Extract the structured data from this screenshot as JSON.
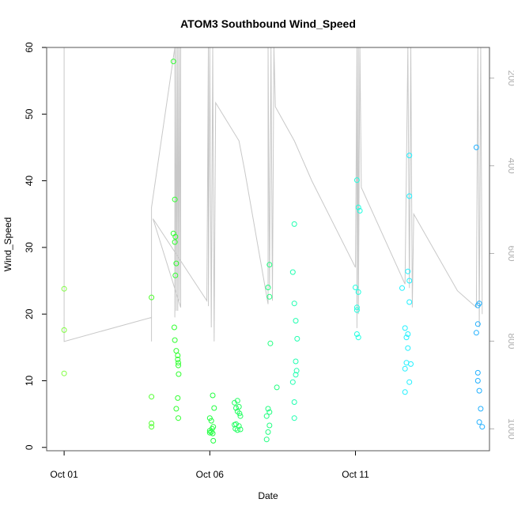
{
  "chart_data": {
    "type": "scatter",
    "title": "ATOM3 Southbound Wind_Speed",
    "xlabel": "Date",
    "ylabel": "Wind_Speed",
    "xlim": [
      -0.6,
      14.6
    ],
    "ylim": [
      -0.5,
      60
    ],
    "x_ticks": [
      {
        "value": 0,
        "label": "Oct 01"
      },
      {
        "value": 5,
        "label": "Oct 06"
      },
      {
        "value": 10,
        "label": "Oct 11"
      }
    ],
    "y_ticks": [
      0,
      10,
      20,
      30,
      40,
      50,
      60
    ],
    "y2_ticks": [
      200,
      400,
      600,
      800,
      1000
    ],
    "y2lim": [
      1050,
      130
    ],
    "grid": false,
    "legend": "none",
    "colors": {
      "frame": "#555555",
      "overlay_line": "#c8c8c8",
      "right_axis": "#b0b0b0"
    },
    "series": [
      {
        "color": "#80ff40",
        "points": [
          [
            0.0,
            23.8
          ],
          [
            0.0,
            17.6
          ],
          [
            0.0,
            11.1
          ]
        ]
      },
      {
        "color": "#50ff30",
        "points": [
          [
            3.0,
            22.5
          ],
          [
            3.0,
            7.6
          ],
          [
            3.0,
            3.6
          ],
          [
            3.0,
            3.1
          ]
        ]
      },
      {
        "color": "#30ff30",
        "points": [
          [
            3.75,
            57.9
          ],
          [
            3.8,
            37.2
          ],
          [
            3.75,
            32.1
          ],
          [
            3.82,
            31.6
          ],
          [
            3.8,
            30.8
          ],
          [
            3.85,
            27.6
          ],
          [
            3.82,
            25.8
          ],
          [
            3.78,
            18.0
          ],
          [
            3.8,
            16.1
          ],
          [
            3.85,
            14.5
          ],
          [
            3.9,
            13.8
          ],
          [
            3.9,
            13.2
          ],
          [
            3.92,
            12.7
          ],
          [
            3.92,
            12.3
          ],
          [
            3.93,
            11.0
          ],
          [
            3.9,
            7.4
          ],
          [
            3.85,
            5.8
          ],
          [
            3.92,
            4.4
          ]
        ]
      },
      {
        "color": "#20ff40",
        "points": [
          [
            5.1,
            7.8
          ],
          [
            5.15,
            5.9
          ],
          [
            5.0,
            4.4
          ],
          [
            5.05,
            4.0
          ],
          [
            5.12,
            3.1
          ],
          [
            5.08,
            2.8
          ],
          [
            5.0,
            2.5
          ],
          [
            5.05,
            2.3
          ],
          [
            5.1,
            2.1
          ],
          [
            5.0,
            2.2
          ],
          [
            5.12,
            1.0
          ]
        ]
      },
      {
        "color": "#20ff60",
        "points": [
          [
            5.85,
            6.7
          ],
          [
            5.95,
            7.0
          ],
          [
            6.0,
            6.1
          ],
          [
            5.9,
            5.9
          ],
          [
            6.02,
            5.1
          ],
          [
            5.95,
            5.4
          ],
          [
            6.05,
            4.7
          ],
          [
            5.85,
            3.4
          ],
          [
            5.9,
            3.5
          ],
          [
            6.0,
            3.2
          ],
          [
            5.88,
            2.8
          ],
          [
            5.95,
            2.6
          ],
          [
            6.05,
            2.7
          ]
        ]
      },
      {
        "color": "#20ff80",
        "points": [
          [
            7.05,
            27.4
          ],
          [
            7.0,
            24.0
          ],
          [
            7.05,
            22.6
          ],
          [
            7.08,
            15.6
          ],
          [
            7.3,
            9.0
          ],
          [
            7.0,
            5.8
          ],
          [
            7.05,
            5.3
          ],
          [
            6.95,
            4.7
          ],
          [
            7.05,
            3.3
          ],
          [
            7.0,
            2.3
          ],
          [
            6.95,
            1.2
          ]
        ]
      },
      {
        "color": "#20ffb0",
        "points": [
          [
            7.9,
            33.5
          ],
          [
            7.85,
            26.3
          ],
          [
            7.9,
            21.6
          ],
          [
            7.95,
            19.0
          ],
          [
            8.0,
            16.3
          ],
          [
            7.95,
            12.9
          ],
          [
            7.98,
            11.5
          ],
          [
            7.95,
            10.9
          ],
          [
            7.85,
            9.8
          ],
          [
            7.9,
            6.8
          ],
          [
            7.9,
            4.4
          ]
        ]
      },
      {
        "color": "#20ffe0",
        "points": [
          [
            10.05,
            40.1
          ],
          [
            10.1,
            36.0
          ],
          [
            10.15,
            35.5
          ],
          [
            10.0,
            24.0
          ],
          [
            10.1,
            23.3
          ],
          [
            10.05,
            21.0
          ],
          [
            10.05,
            20.6
          ],
          [
            10.05,
            17.0
          ],
          [
            10.1,
            16.5
          ]
        ]
      },
      {
        "color": "#20f0ff",
        "points": [
          [
            11.85,
            43.8
          ],
          [
            11.85,
            37.7
          ],
          [
            11.8,
            26.4
          ],
          [
            11.85,
            25.0
          ],
          [
            11.6,
            23.9
          ],
          [
            11.85,
            21.8
          ],
          [
            11.7,
            17.9
          ],
          [
            11.8,
            17.0
          ],
          [
            11.75,
            16.5
          ],
          [
            11.8,
            14.9
          ],
          [
            11.75,
            12.7
          ],
          [
            11.9,
            12.5
          ],
          [
            11.7,
            11.8
          ],
          [
            11.85,
            9.8
          ],
          [
            11.7,
            8.3
          ]
        ]
      },
      {
        "color": "#20b0ff",
        "points": [
          [
            14.15,
            45.0
          ],
          [
            14.25,
            21.6
          ],
          [
            14.2,
            21.3
          ],
          [
            14.2,
            18.5
          ],
          [
            14.15,
            17.2
          ],
          [
            14.2,
            11.2
          ],
          [
            14.2,
            10.0
          ],
          [
            14.25,
            8.5
          ],
          [
            14.3,
            5.8
          ],
          [
            14.25,
            3.8
          ],
          [
            14.35,
            3.1
          ]
        ]
      }
    ],
    "overlay_line": [
      [
        0.0,
        60.0
      ],
      [
        0.0,
        15.9
      ],
      [
        3.0,
        19.5
      ],
      [
        3.0,
        15.9
      ],
      [
        3.0,
        36.0
      ],
      [
        3.8,
        60.0
      ],
      [
        3.8,
        19.5
      ],
      [
        3.85,
        60.0
      ],
      [
        3.85,
        20.5
      ],
      [
        3.9,
        60.0
      ],
      [
        3.9,
        20.5
      ],
      [
        3.95,
        60.0
      ],
      [
        3.95,
        22.0
      ],
      [
        4.0,
        60.0
      ],
      [
        4.0,
        21.0
      ],
      [
        3.05,
        34.3
      ],
      [
        4.9,
        22.0
      ],
      [
        4.95,
        60.0
      ],
      [
        4.95,
        21.2
      ],
      [
        5.0,
        60.0
      ],
      [
        5.05,
        18.0
      ],
      [
        5.1,
        60.0
      ],
      [
        5.15,
        15.9
      ],
      [
        5.2,
        51.7
      ],
      [
        6.0,
        46.0
      ],
      [
        6.2,
        41.5
      ],
      [
        7.0,
        21.5
      ],
      [
        7.0,
        60.0
      ],
      [
        7.05,
        24.0
      ],
      [
        7.1,
        60.0
      ],
      [
        7.15,
        22.0
      ],
      [
        7.2,
        60.0
      ],
      [
        7.25,
        51.1
      ],
      [
        7.9,
        46.0
      ],
      [
        8.5,
        40.0
      ],
      [
        10.0,
        27.0
      ],
      [
        10.05,
        60.0
      ],
      [
        10.05,
        17.9
      ],
      [
        10.1,
        60.0
      ],
      [
        10.1,
        20.0
      ],
      [
        10.15,
        60.0
      ],
      [
        10.2,
        39.0
      ],
      [
        11.7,
        24.5
      ],
      [
        11.8,
        60.0
      ],
      [
        11.85,
        23.9
      ],
      [
        11.9,
        60.0
      ],
      [
        11.95,
        21.0
      ],
      [
        12.0,
        35.0
      ],
      [
        13.5,
        23.5
      ],
      [
        14.15,
        21.0
      ],
      [
        14.2,
        60.0
      ],
      [
        14.25,
        18.0
      ],
      [
        14.3,
        60.0
      ],
      [
        14.35,
        20.0
      ]
    ]
  }
}
